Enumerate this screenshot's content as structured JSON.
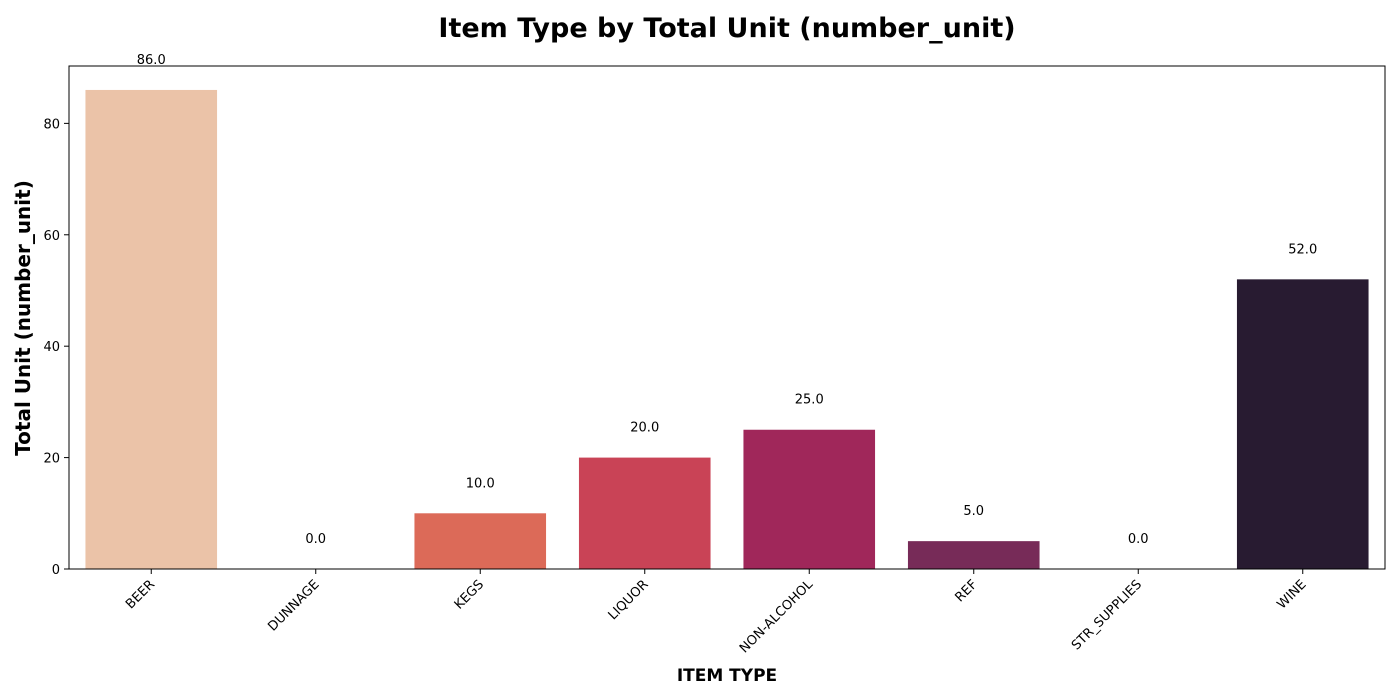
{
  "chart_data": {
    "type": "bar",
    "title": "Item Type by Total Unit (number_unit)",
    "xlabel": "ITEM TYPE",
    "ylabel": "Total Unit (number_unit)",
    "categories": [
      "BEER",
      "DUNNAGE",
      "KEGS",
      "LIQUOR",
      "NON-ALCOHOL",
      "REF",
      "STR_SUPPLIES",
      "WINE"
    ],
    "values": [
      86.0,
      0.0,
      10.0,
      20.0,
      25.0,
      5.0,
      0.0,
      52.0
    ],
    "data_labels": [
      "86.0",
      "0.0",
      "10.0",
      "20.0",
      "25.0",
      "5.0",
      "0.0",
      "52.0"
    ],
    "colors": [
      "#ebc3a8",
      "#ee9a73",
      "#dc6a58",
      "#c94356",
      "#a0275a",
      "#772b58",
      "#4f2550",
      "#281b31"
    ],
    "yticks": [
      0,
      20,
      40,
      60,
      80
    ],
    "ylim": [
      0,
      90.3
    ],
    "grid": false,
    "legend": "none"
  }
}
